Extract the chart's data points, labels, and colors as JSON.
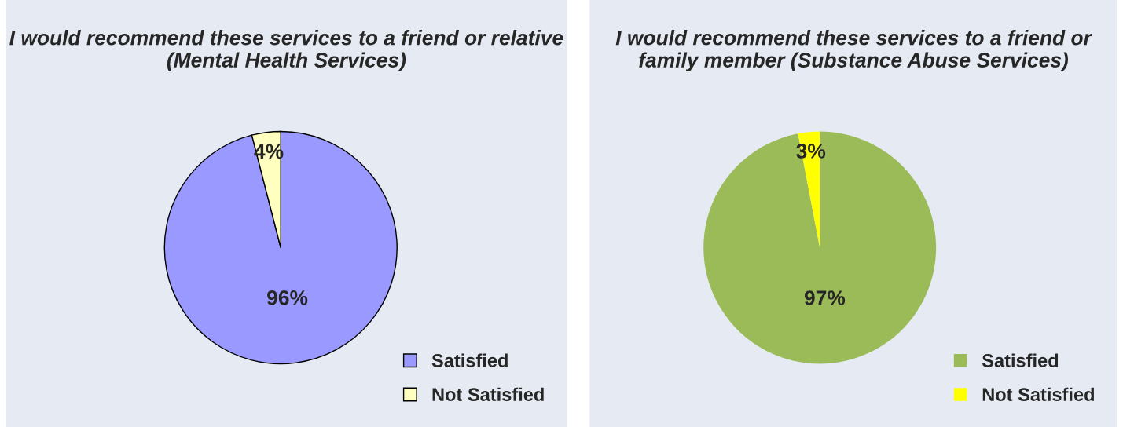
{
  "chart_data": [
    {
      "type": "pie",
      "title": "I would recommend these services to a friend or relative (Mental Health Services)",
      "categories": [
        "Satisfied",
        "Not Satisfied"
      ],
      "values": [
        96,
        4
      ],
      "colors": [
        "#9999ff",
        "#ffffc0"
      ],
      "value_labels": [
        "96%",
        "4%"
      ],
      "legend": "bottom right"
    },
    {
      "type": "pie",
      "title": "I would recommend these services to a friend or family member (Substance Abuse Services)",
      "categories": [
        "Satisfied",
        "Not Satisfied"
      ],
      "values": [
        97,
        3
      ],
      "colors": [
        "#9bbb59",
        "#ffff00"
      ],
      "value_labels": [
        "97%",
        "3%"
      ],
      "legend": "bottom right"
    }
  ]
}
